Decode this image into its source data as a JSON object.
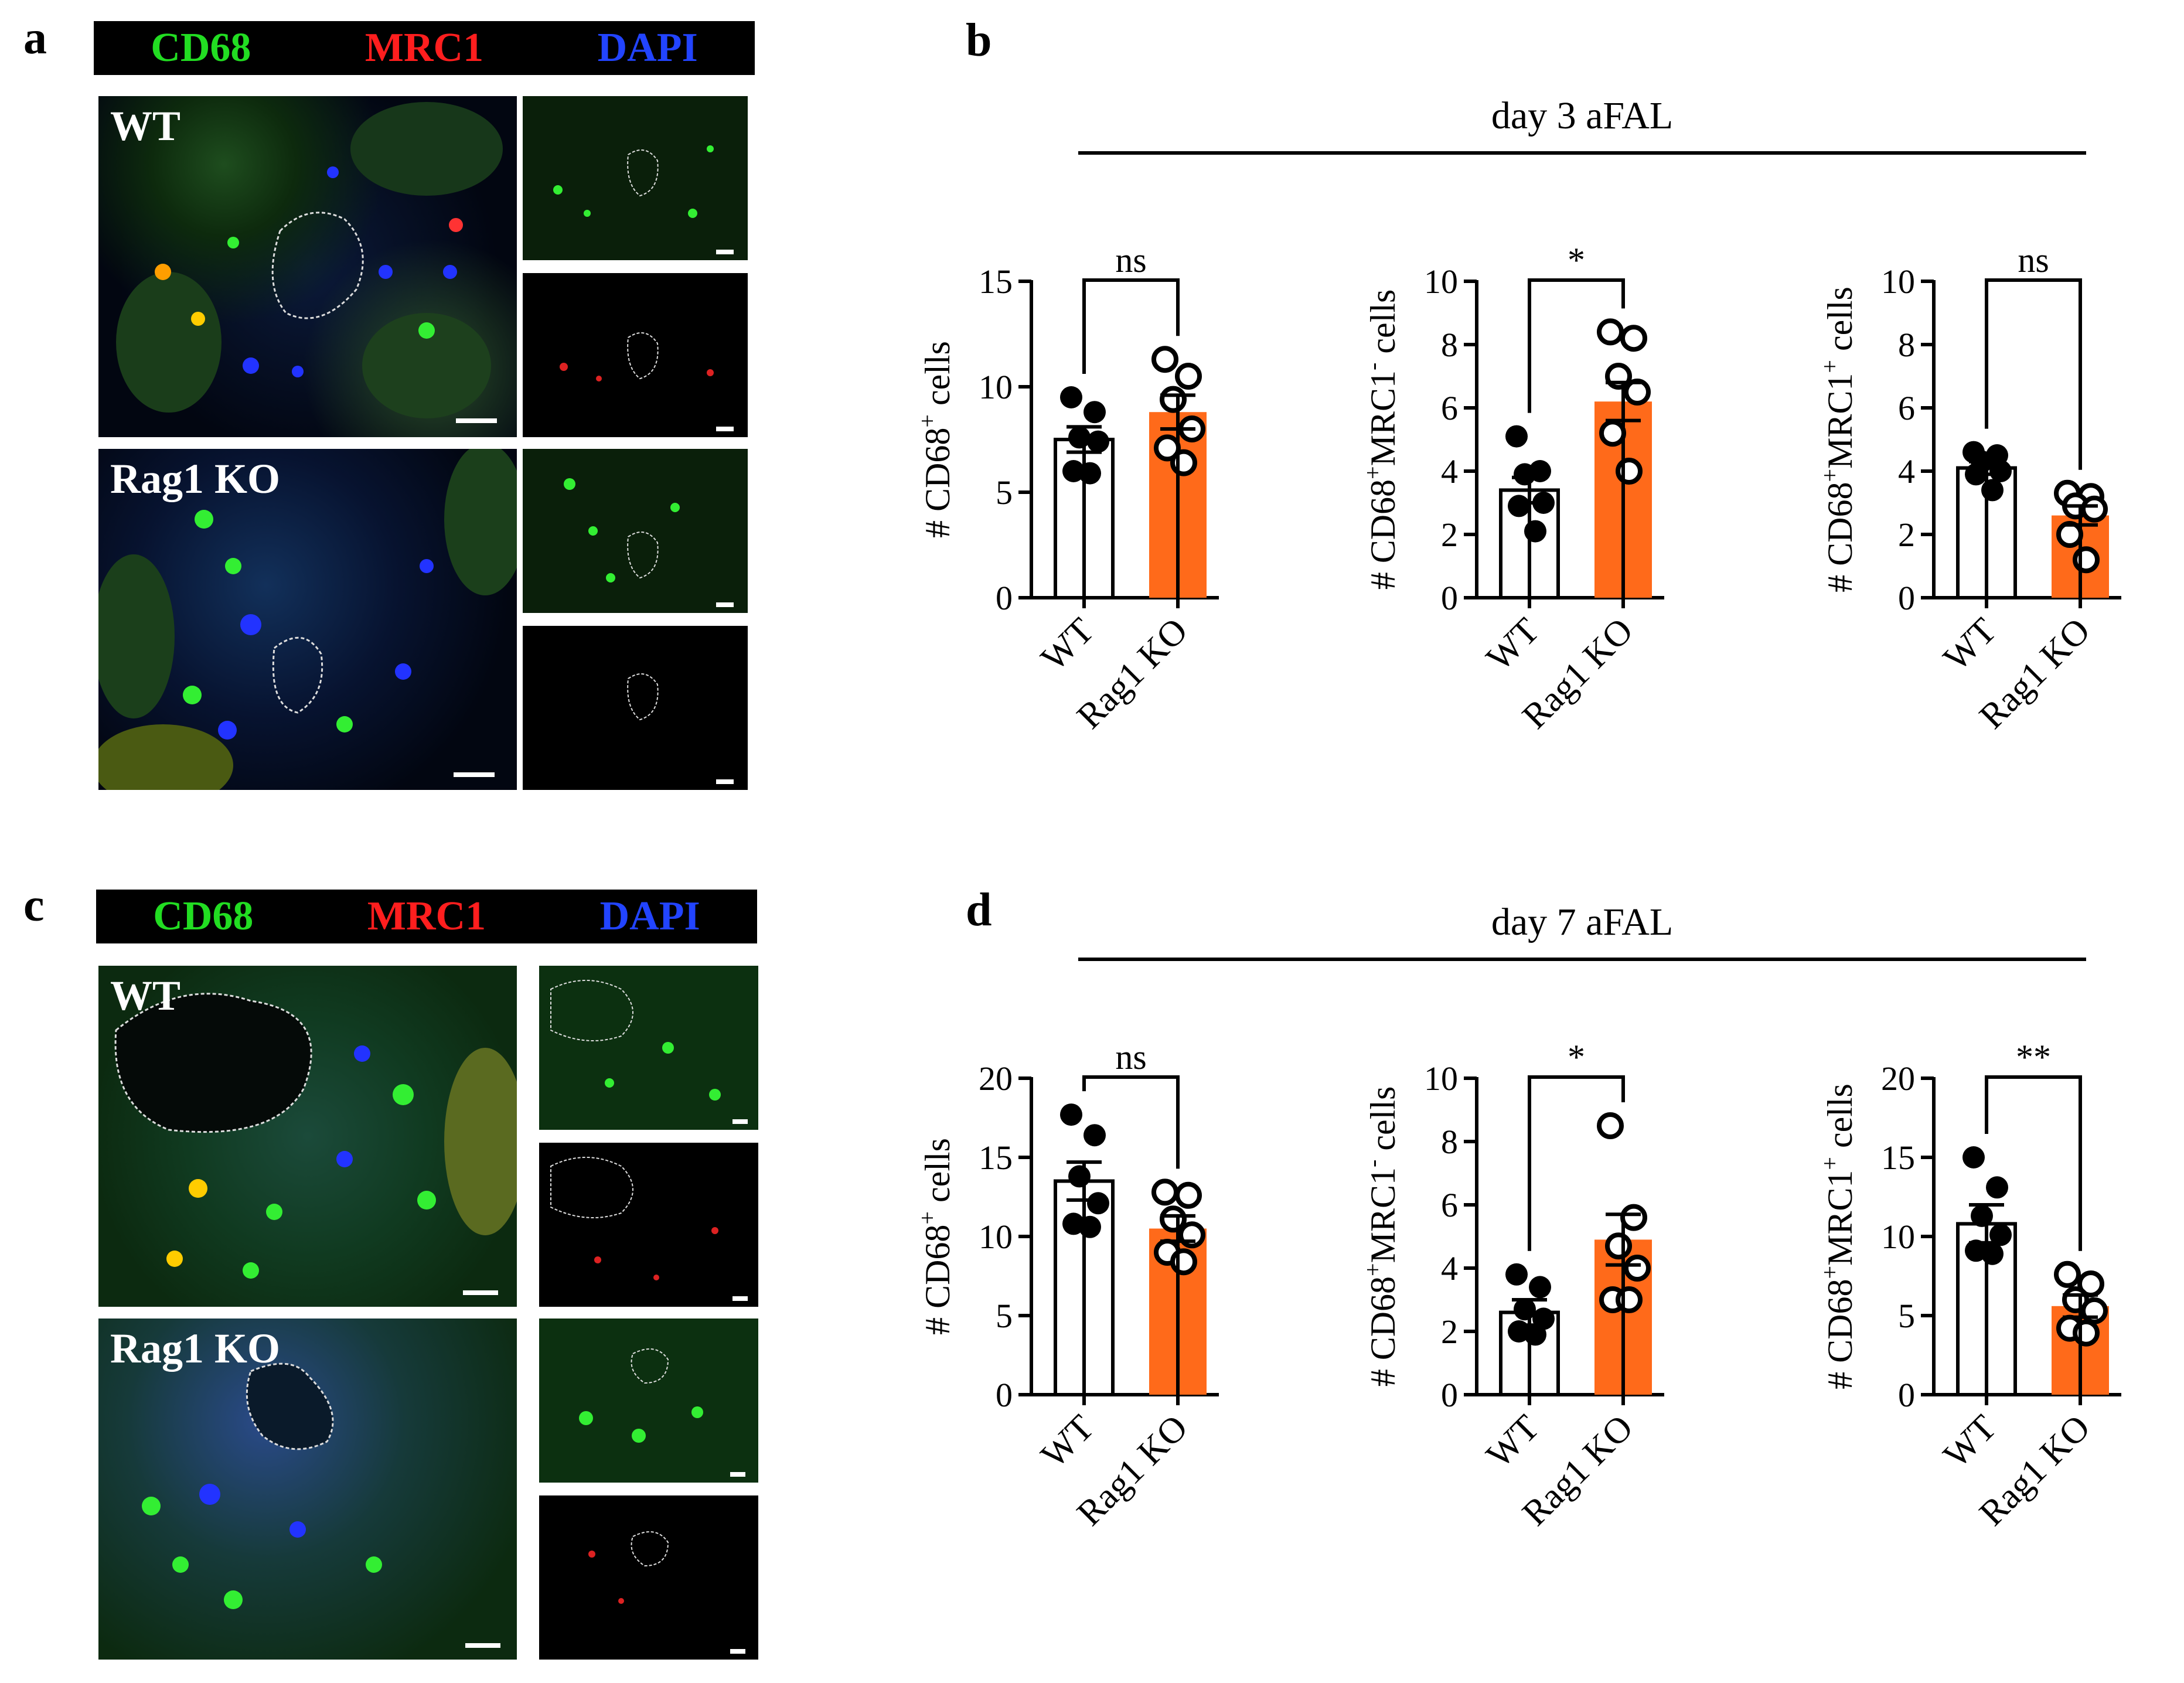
{
  "panel_a": {
    "letter": "a",
    "stains": [
      {
        "label": "CD68",
        "color": "#22dd22"
      },
      {
        "label": "MRC1",
        "color": "#ff1e1e"
      },
      {
        "label": "DAPI",
        "color": "#2244ff"
      }
    ],
    "rows": [
      {
        "label": "WT"
      },
      {
        "label": "Rag1 KO"
      }
    ]
  },
  "panel_b": {
    "letter": "b",
    "title": "day 3 aFAL"
  },
  "panel_c": {
    "letter": "c",
    "stains": [
      {
        "label": "CD68",
        "color": "#22dd22"
      },
      {
        "label": "MRC1",
        "color": "#ff1e1e"
      },
      {
        "label": "DAPI",
        "color": "#2244ff"
      }
    ],
    "rows": [
      {
        "label": "WT"
      },
      {
        "label": "Rag1 KO"
      }
    ]
  },
  "panel_d": {
    "letter": "d",
    "title": "day 7 aFAL"
  },
  "colors": {
    "wt_fill": "#ffffff",
    "ko_fill": "#ff6a1a",
    "axis": "#000000"
  },
  "chart_data": [
    {
      "type": "bar",
      "panel": "b",
      "categories": [
        "WT",
        "Rag1 KO"
      ],
      "ylabel_parts": [
        "# CD68",
        "+",
        " cells"
      ],
      "yticks": [
        0,
        5,
        10,
        15
      ],
      "ylim": [
        0,
        15
      ],
      "significance": "ns",
      "series": [
        {
          "mean": 7.5,
          "sem": 0.6,
          "points": [
            9.5,
            8.8,
            7.6,
            7.4,
            6.0,
            5.9
          ]
        },
        {
          "mean": 8.8,
          "sem": 0.8,
          "points": [
            11.3,
            10.5,
            9.4,
            8.0,
            7.1,
            6.4
          ]
        }
      ]
    },
    {
      "type": "bar",
      "panel": "b",
      "categories": [
        "WT",
        "Rag1 KO"
      ],
      "ylabel_parts": [
        "# CD68",
        "+",
        "MRC1",
        "-",
        " cells"
      ],
      "yticks": [
        0,
        2,
        4,
        6,
        8,
        10
      ],
      "ylim": [
        0,
        10
      ],
      "significance": "*",
      "series": [
        {
          "mean": 3.4,
          "sem": 0.4,
          "points": [
            5.1,
            4.0,
            3.9,
            3.0,
            2.9,
            2.1
          ]
        },
        {
          "mean": 6.2,
          "sem": 0.6,
          "points": [
            8.4,
            8.2,
            7.0,
            6.5,
            5.2,
            4.0
          ]
        }
      ]
    },
    {
      "type": "bar",
      "panel": "b",
      "categories": [
        "WT",
        "Rag1 KO"
      ],
      "ylabel_parts": [
        "# CD68",
        "+",
        "MRC1",
        "+",
        " cells"
      ],
      "yticks": [
        0,
        2,
        4,
        6,
        8,
        10
      ],
      "ylim": [
        0,
        10
      ],
      "significance": "ns",
      "series": [
        {
          "mean": 4.1,
          "sem": 0.2,
          "points": [
            4.6,
            4.5,
            4.3,
            4.0,
            3.9,
            3.4
          ]
        },
        {
          "mean": 2.6,
          "sem": 0.3,
          "points": [
            3.3,
            3.2,
            2.9,
            2.8,
            2.0,
            1.2
          ]
        }
      ]
    },
    {
      "type": "bar",
      "panel": "d",
      "categories": [
        "WT",
        "Rag1 KO"
      ],
      "ylabel_parts": [
        "# CD68",
        "+",
        " cells"
      ],
      "yticks": [
        0,
        5,
        10,
        15,
        20
      ],
      "ylim": [
        0,
        20
      ],
      "significance": "ns",
      "series": [
        {
          "mean": 13.5,
          "sem": 1.2,
          "points": [
            17.7,
            16.4,
            13.8,
            12.1,
            10.8,
            10.6
          ]
        },
        {
          "mean": 10.5,
          "sem": 0.8,
          "points": [
            12.8,
            12.6,
            11.1,
            10.1,
            9.0,
            8.4
          ]
        }
      ]
    },
    {
      "type": "bar",
      "panel": "d",
      "categories": [
        "WT",
        "Rag1 KO"
      ],
      "ylabel_parts": [
        "# CD68",
        "+",
        "MRC1",
        "-",
        " cells"
      ],
      "yticks": [
        0,
        2,
        4,
        6,
        8,
        10
      ],
      "ylim": [
        0,
        10
      ],
      "significance": "*",
      "series": [
        {
          "mean": 2.6,
          "sem": 0.4,
          "points": [
            3.8,
            3.4,
            2.7,
            2.4,
            2.0,
            1.9
          ]
        },
        {
          "mean": 4.9,
          "sem": 0.8,
          "points": [
            8.5,
            5.6,
            4.7,
            4.0,
            3.0,
            3.0
          ]
        }
      ]
    },
    {
      "type": "bar",
      "panel": "d",
      "categories": [
        "WT",
        "Rag1 KO"
      ],
      "ylabel_parts": [
        "# CD68",
        "+",
        "MRC1",
        "+",
        " cells"
      ],
      "yticks": [
        0,
        5,
        10,
        15,
        20
      ],
      "ylim": [
        0,
        20
      ],
      "significance": "**",
      "series": [
        {
          "mean": 10.8,
          "sem": 1.2,
          "points": [
            15.0,
            13.1,
            11.3,
            10.1,
            9.1,
            8.9
          ]
        },
        {
          "mean": 5.6,
          "sem": 0.7,
          "points": [
            7.6,
            7.0,
            6.0,
            5.3,
            4.2,
            3.9
          ]
        }
      ]
    }
  ]
}
